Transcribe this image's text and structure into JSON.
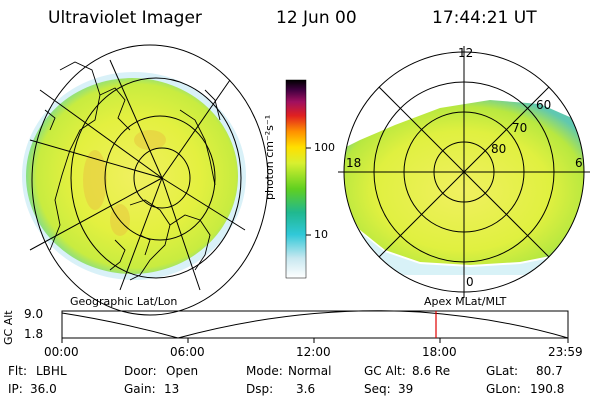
{
  "header": {
    "instrument": "Ultraviolet Imager",
    "date": "12 Jun 00",
    "time": "17:44:21 UT"
  },
  "left_map": {
    "caption": "Geographic Lat/Lon"
  },
  "right_map": {
    "caption": "Apex MLat/MLT",
    "mlt_labels": {
      "top": "12",
      "left": "18",
      "right": "6",
      "bottom": "0"
    },
    "lat_labels": [
      "60",
      "70",
      "80"
    ]
  },
  "colorbar": {
    "unit_label": "photon cm⁻²s⁻¹",
    "tick_100": "100",
    "tick_10": "10"
  },
  "altitude_plot": {
    "ylabel": "GC Alt",
    "y_top": "9.0",
    "y_bottom": "1.8",
    "x_ticks": [
      "00:00",
      "06:00",
      "12:00",
      "18:00",
      "23:59"
    ],
    "marker_color": "#e00000"
  },
  "status": {
    "flt_label": "Flt:",
    "flt_value": "LBHL",
    "ip_label": "IP:",
    "ip_value": "36.0",
    "door_label": "Door:",
    "door_value": "Open",
    "gain_label": "Gain:",
    "gain_value": "13",
    "mode_label": "Mode:",
    "mode_value": "Normal",
    "dsp_label": "Dsp:",
    "dsp_value": "3.6",
    "gcalt_label": "GC Alt:",
    "gcalt_value": "8.6 Re",
    "seq_label": "Seq:",
    "seq_value": "39",
    "glat_label": "GLat:",
    "glat_value": "80.7",
    "glon_label": "GLon:",
    "glon_value": "190.8"
  }
}
